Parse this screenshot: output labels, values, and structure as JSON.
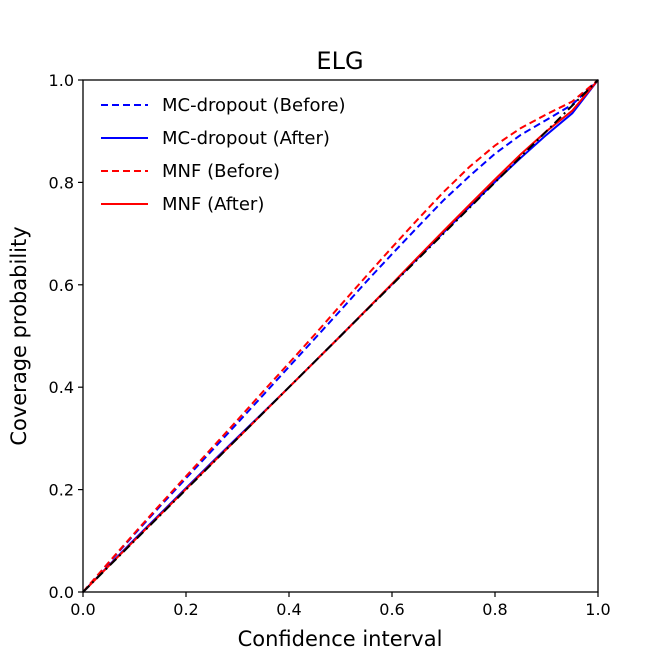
{
  "chart_data": {
    "type": "line",
    "title": "ELG",
    "xlabel": "Confidence interval",
    "ylabel": "Coverage probability",
    "xlim": [
      0.0,
      1.0
    ],
    "ylim": [
      0.0,
      1.0
    ],
    "xticks": [
      "0.0",
      "0.2",
      "0.4",
      "0.6",
      "0.8",
      "1.0"
    ],
    "yticks": [
      "0.0",
      "0.2",
      "0.4",
      "0.6",
      "0.8",
      "1.0"
    ],
    "grid": false,
    "legend_position": "top-left",
    "reference_line": {
      "color": "#000000",
      "style": "dashdot",
      "x": [
        0.0,
        1.0
      ],
      "y": [
        0.0,
        1.0
      ]
    },
    "series": [
      {
        "name": "MC-dropout (Before)",
        "color": "#0000ff",
        "style": "dashed",
        "x": [
          0.0,
          0.05,
          0.1,
          0.15,
          0.2,
          0.25,
          0.3,
          0.35,
          0.4,
          0.45,
          0.5,
          0.55,
          0.6,
          0.65,
          0.7,
          0.75,
          0.8,
          0.85,
          0.9,
          0.95,
          1.0
        ],
        "y": [
          0.0,
          0.057,
          0.113,
          0.168,
          0.222,
          0.276,
          0.33,
          0.385,
          0.44,
          0.495,
          0.55,
          0.606,
          0.66,
          0.713,
          0.765,
          0.812,
          0.856,
          0.893,
          0.922,
          0.952,
          1.0
        ]
      },
      {
        "name": "MC-dropout (After)",
        "color": "#0000ff",
        "style": "solid",
        "x": [
          0.0,
          0.05,
          0.1,
          0.15,
          0.2,
          0.25,
          0.3,
          0.35,
          0.4,
          0.45,
          0.5,
          0.55,
          0.6,
          0.65,
          0.7,
          0.75,
          0.8,
          0.85,
          0.9,
          0.95,
          1.0
        ],
        "y": [
          0.0,
          0.052,
          0.103,
          0.153,
          0.203,
          0.253,
          0.302,
          0.351,
          0.4,
          0.45,
          0.5,
          0.551,
          0.601,
          0.652,
          0.702,
          0.752,
          0.801,
          0.848,
          0.893,
          0.935,
          1.0
        ]
      },
      {
        "name": "MNF (Before)",
        "color": "#ff0000",
        "style": "dashed",
        "x": [
          0.0,
          0.05,
          0.1,
          0.15,
          0.2,
          0.25,
          0.3,
          0.35,
          0.4,
          0.45,
          0.5,
          0.55,
          0.6,
          0.65,
          0.7,
          0.75,
          0.8,
          0.85,
          0.9,
          0.95,
          1.0
        ],
        "y": [
          0.0,
          0.058,
          0.115,
          0.171,
          0.226,
          0.281,
          0.336,
          0.392,
          0.447,
          0.503,
          0.56,
          0.617,
          0.673,
          0.728,
          0.781,
          0.83,
          0.872,
          0.906,
          0.933,
          0.958,
          1.0
        ]
      },
      {
        "name": "MNF (After)",
        "color": "#ff0000",
        "style": "solid",
        "x": [
          0.0,
          0.05,
          0.1,
          0.15,
          0.2,
          0.25,
          0.3,
          0.35,
          0.4,
          0.45,
          0.5,
          0.55,
          0.6,
          0.65,
          0.7,
          0.75,
          0.8,
          0.85,
          0.9,
          0.95,
          1.0
        ],
        "y": [
          0.0,
          0.051,
          0.101,
          0.151,
          0.201,
          0.251,
          0.3,
          0.35,
          0.4,
          0.45,
          0.5,
          0.551,
          0.602,
          0.654,
          0.705,
          0.756,
          0.806,
          0.855,
          0.9,
          0.94,
          1.0
        ]
      }
    ]
  }
}
